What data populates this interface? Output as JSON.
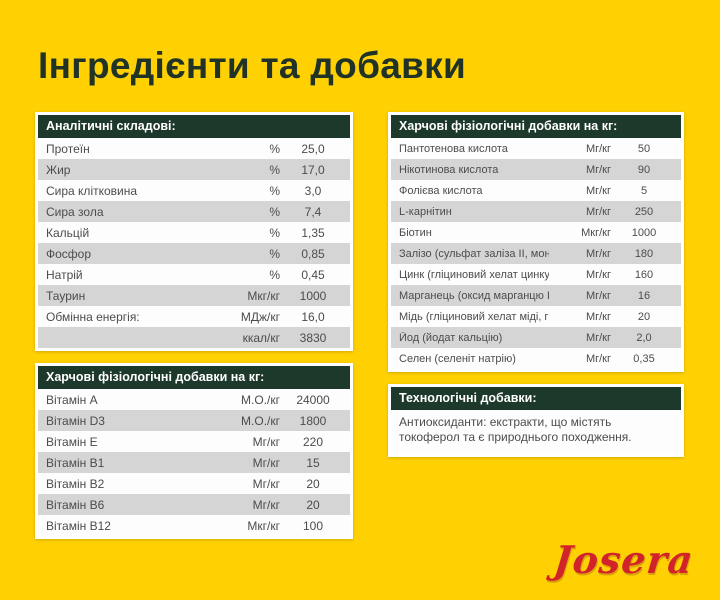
{
  "page": {
    "title": "Інгредієнти та добавки",
    "background_color": "#ffd103",
    "header_bar_color": "#1d392b",
    "row_alt_color": "#d5d5d5",
    "logo_text": "Josera",
    "logo_color": "#d2232a"
  },
  "analytical": {
    "header": "Аналітичні складові:",
    "rows": [
      {
        "label": "Протеїн",
        "unit": "%",
        "value": "25,0"
      },
      {
        "label": "Жир",
        "unit": "%",
        "value": "17,0"
      },
      {
        "label": "Сира клітковина",
        "unit": "%",
        "value": "3,0"
      },
      {
        "label": "Сира зола",
        "unit": "%",
        "value": "7,4"
      },
      {
        "label": "Кальцій",
        "unit": "%",
        "value": "1,35"
      },
      {
        "label": "Фосфор",
        "unit": "%",
        "value": "0,85"
      },
      {
        "label": "Натрій",
        "unit": "%",
        "value": "0,45"
      },
      {
        "label": "Таурин",
        "unit": "Мкг/кг",
        "value": "1000"
      },
      {
        "label": "Обмінна енергія:",
        "unit": "МДж/кг",
        "value": "16,0"
      },
      {
        "label": "",
        "unit": "ккал/кг",
        "value": "3830"
      }
    ]
  },
  "nutritional_left": {
    "header": "Харчові фізіологічні добавки на кг:",
    "rows": [
      {
        "label": "Вітамін A",
        "unit": "М.О./кг",
        "value": "24000"
      },
      {
        "label": "Вітамін D3",
        "unit": "М.О./кг",
        "value": "1800"
      },
      {
        "label": "Вітамін E",
        "unit": "Мг/кг",
        "value": "220"
      },
      {
        "label": "Вітамін B1",
        "unit": "Мг/кг",
        "value": "15"
      },
      {
        "label": "Вітамін B2",
        "unit": "Мг/кг",
        "value": "20"
      },
      {
        "label": "Вітамін B6",
        "unit": "Мг/кг",
        "value": "20"
      },
      {
        "label": "Вітамін B12",
        "unit": "Мкг/кг",
        "value": "100"
      }
    ]
  },
  "nutritional_right": {
    "header": "Харчові фізіологічні добавки на кг:",
    "rows": [
      {
        "label": "Пантотенова кислота",
        "unit": "Мг/кг",
        "value": "50"
      },
      {
        "label": "Нікотинова кислота",
        "unit": "Мг/кг",
        "value": "90"
      },
      {
        "label": "Фолієва кислота",
        "unit": "Мг/кг",
        "value": "5"
      },
      {
        "label": "L-карнітин",
        "unit": "Мг/кг",
        "value": "250"
      },
      {
        "label": "Біотин",
        "unit": "Мкг/кг",
        "value": "1000"
      },
      {
        "label": "Залізо (сульфат заліза II, моногідрат)",
        "unit": "Мг/кг",
        "value": "180"
      },
      {
        "label": "Цинк (гліциновий хелат цинку, гідрат)",
        "unit": "Мг/кг",
        "value": "160"
      },
      {
        "label": "Марганець (оксид марганцю II)",
        "unit": "Мг/кг",
        "value": "16"
      },
      {
        "label": "Мідь (гліциновий хелат міді, гідрат)",
        "unit": "Мг/кг",
        "value": "20"
      },
      {
        "label": "Йод (йодат кальцію)",
        "unit": "Мг/кг",
        "value": "2,0"
      },
      {
        "label": "Селен (селеніт натрію)",
        "unit": "Мг/кг",
        "value": "0,35"
      }
    ]
  },
  "technological": {
    "header": "Технологічні добавки:",
    "body": "Антиоксиданти: екстракти, що містять токоферол та є природнього походження."
  }
}
